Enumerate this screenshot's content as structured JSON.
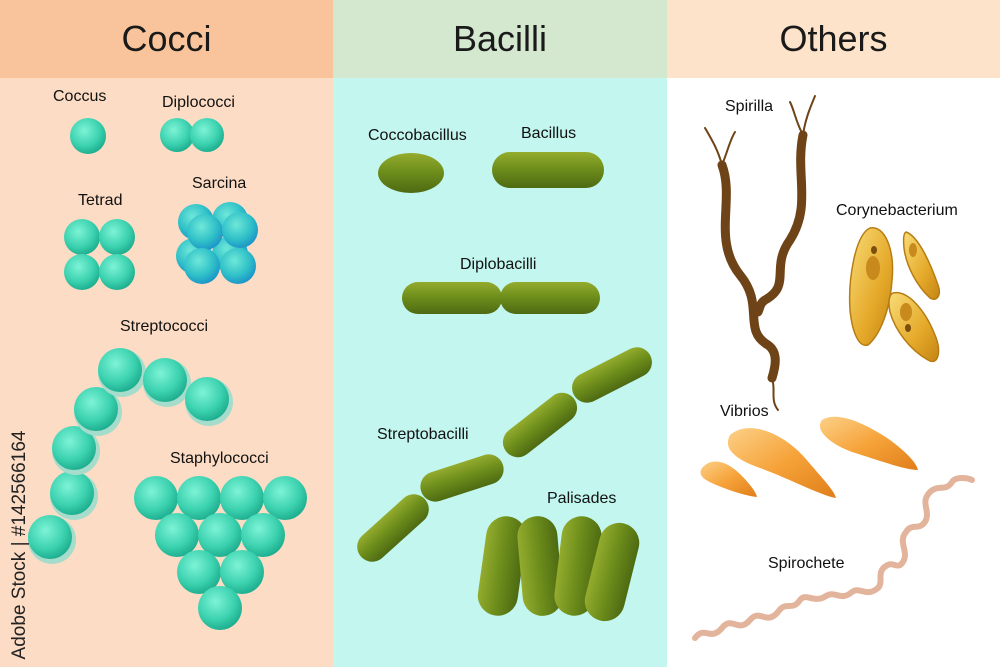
{
  "headers": {
    "cocci": "Cocci",
    "bacilli": "Bacilli",
    "others": "Others"
  },
  "labels": {
    "coccus": "Coccus",
    "diplococci": "Diplococci",
    "tetrad": "Tetrad",
    "sarcina": "Sarcina",
    "streptococci": "Streptococci",
    "staphylococci": "Staphylococci",
    "coccobacillus": "Coccobacillus",
    "bacillus": "Bacillus",
    "diplobacilli": "Diplobacilli",
    "streptobacilli": "Streptobacilli",
    "palisades": "Palisades",
    "spirilla": "Spirilla",
    "corynebacterium": "Corynebacterium",
    "vibrios": "Vibrios",
    "spirochete": "Spirochete"
  },
  "stock_id": "Adobe Stock | #142566164",
  "colors": {
    "cocci_bg": "#fcdcc4",
    "cocci_header": "#f9c49b",
    "bacilli_bg": "#c2f6ef",
    "bacilli_header": "#d4e8cf",
    "others_bg": "#ffffff",
    "others_header": "#fde3c9",
    "coccus_fill": "#3cd2b0",
    "bacillus_fill": "#6f8f1c",
    "spirilla_fill": "#6e4317",
    "coryne_fill": "#e5a92a",
    "vibrio_fill": "#f6a33a",
    "spirochete_fill": "#e3b49c"
  }
}
